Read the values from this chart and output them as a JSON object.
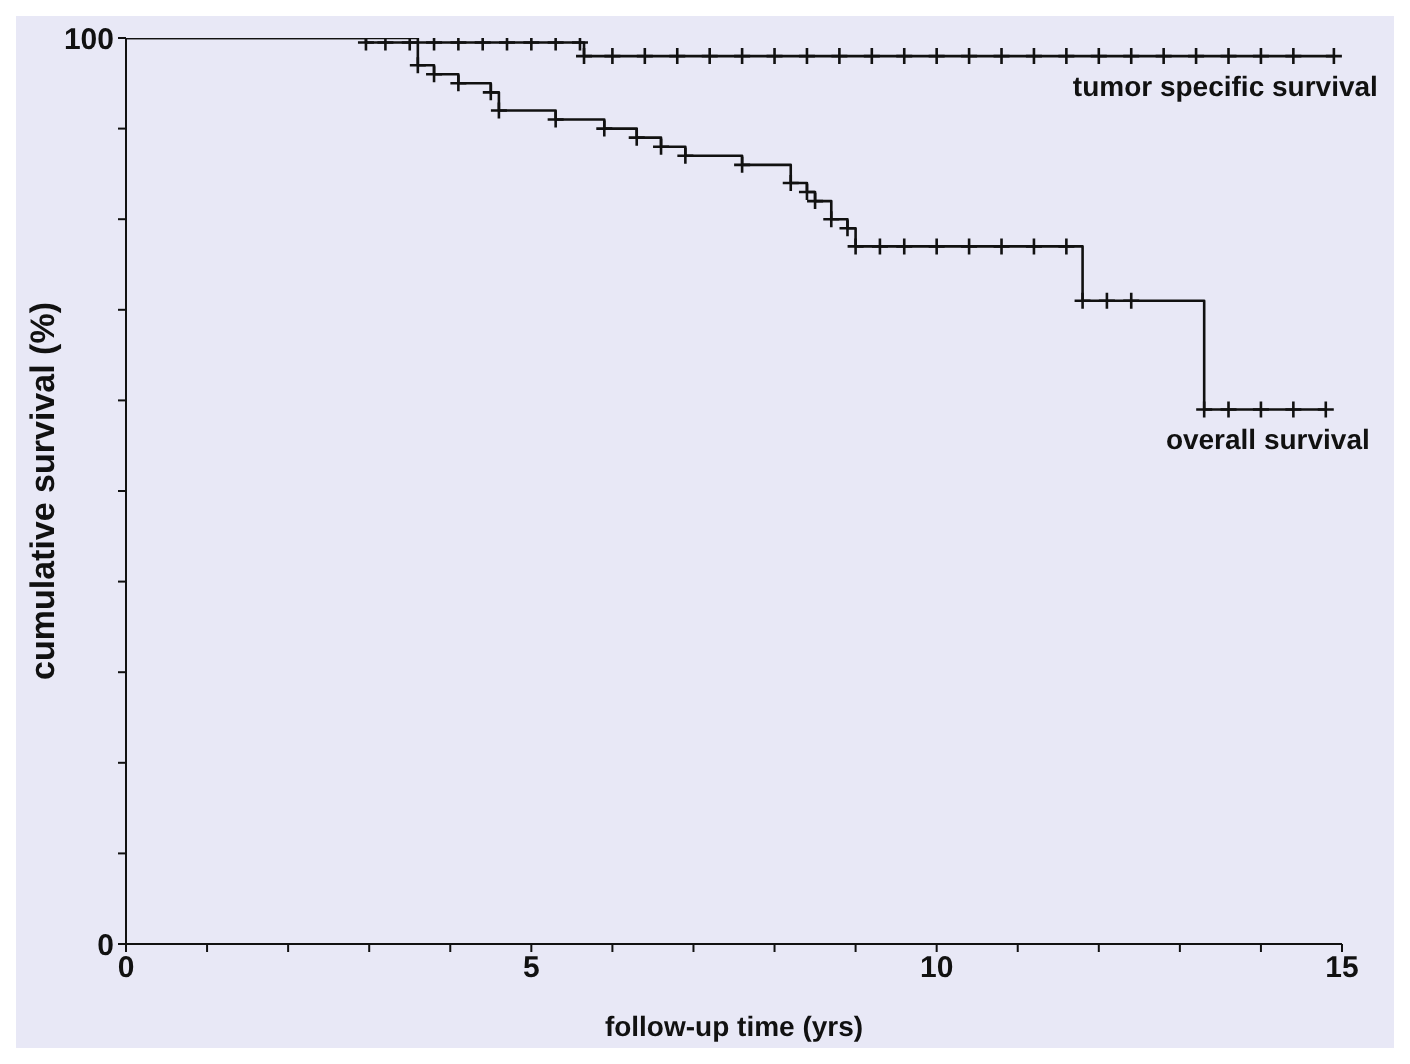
{
  "chart_data": {
    "type": "step",
    "xlabel": "follow-up time (yrs)",
    "ylabel": "cumulative survival (%)",
    "xlim": [
      0,
      15
    ],
    "ylim": [
      0,
      100
    ],
    "xticks": [
      0,
      {
        "value": 1,
        "label": null
      },
      {
        "value": 2,
        "label": null
      },
      {
        "value": 3,
        "label": null
      },
      {
        "value": 4,
        "label": null
      },
      5,
      {
        "value": 6,
        "label": null
      },
      {
        "value": 7,
        "label": null
      },
      {
        "value": 8,
        "label": null
      },
      {
        "value": 9,
        "label": null
      },
      10,
      {
        "value": 11,
        "label": null
      },
      {
        "value": 12,
        "label": null
      },
      {
        "value": 13,
        "label": null
      },
      {
        "value": 14,
        "label": null
      },
      15
    ],
    "yticks": [
      0,
      {
        "value": 10,
        "label": null
      },
      {
        "value": 20,
        "label": null
      },
      {
        "value": 30,
        "label": null
      },
      {
        "value": 40,
        "label": null
      },
      {
        "value": 50,
        "label": null
      },
      {
        "value": 60,
        "label": null
      },
      {
        "value": 70,
        "label": null
      },
      {
        "value": 80,
        "label": null
      },
      {
        "value": 90,
        "label": null
      },
      100
    ],
    "marker": "cross",
    "line_style": "solid",
    "series": [
      {
        "name": "tumor specific survival",
        "color": "#111111",
        "x": [
          0,
          2.96,
          3.2,
          3.5,
          3.8,
          4.1,
          4.4,
          4.7,
          5.0,
          5.3,
          5.6,
          5.65,
          6.0,
          6.4,
          6.8,
          7.2,
          7.6,
          8.0,
          8.4,
          8.8,
          9.2,
          9.6,
          10.0,
          10.4,
          10.8,
          11.2,
          11.6,
          12.0,
          12.4,
          12.8,
          13.2,
          13.6,
          14.0,
          14.4,
          14.9
        ],
        "values": [
          100,
          99.5,
          99.5,
          99.5,
          99.5,
          99.5,
          99.5,
          99.5,
          99.5,
          99.5,
          99.5,
          98,
          98,
          98,
          98,
          98,
          98,
          98,
          98,
          98,
          98,
          98,
          98,
          98,
          98,
          98,
          98,
          98,
          98,
          98,
          98,
          98,
          98,
          98,
          98
        ]
      },
      {
        "name": "overall survival",
        "color": "#111111",
        "x": [
          0,
          3.6,
          3.8,
          4.1,
          4.5,
          4.6,
          5.3,
          5.9,
          6.3,
          6.6,
          6.9,
          7.6,
          8.2,
          8.4,
          8.5,
          8.7,
          8.9,
          9.0,
          9.3,
          9.6,
          10.0,
          10.4,
          10.8,
          11.2,
          11.6,
          11.8,
          12.1,
          12.4,
          13.3,
          13.6,
          14.0,
          14.4,
          14.8
        ],
        "values": [
          100,
          97,
          96,
          95,
          94,
          92,
          91,
          90,
          89,
          88,
          87,
          86,
          84,
          83,
          82,
          80,
          79,
          77,
          77,
          77,
          77,
          77,
          77,
          77,
          77,
          71,
          71,
          71,
          59,
          59,
          59,
          59,
          59
        ]
      }
    ]
  }
}
